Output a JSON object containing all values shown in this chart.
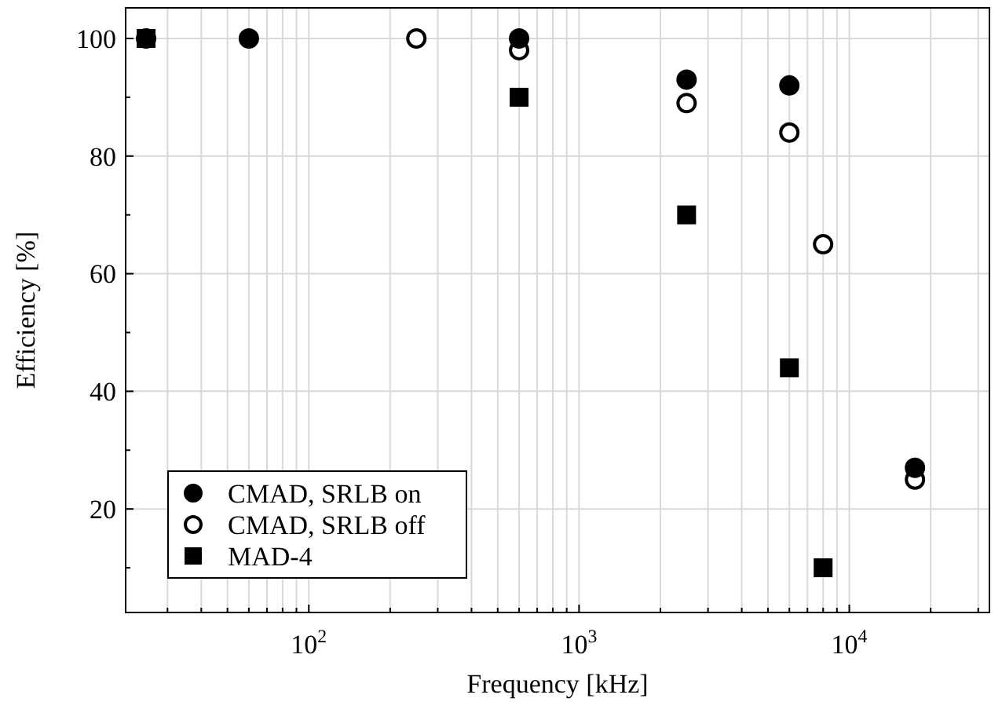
{
  "chart_data": {
    "type": "scatter",
    "xlabel": "Frequency [kHz]",
    "ylabel": "Efficiency [%]",
    "log": "x",
    "grid": true,
    "legend": "bottom left",
    "xlim": [
      21,
      33000
    ],
    "ylim": [
      2.4,
      105.2
    ],
    "xticks": [
      {
        "value": 30,
        "label": null
      },
      {
        "value": 40,
        "label": null
      },
      {
        "value": 50,
        "label": null
      },
      {
        "value": 60,
        "label": null
      },
      {
        "value": 70,
        "label": null
      },
      {
        "value": 80,
        "label": null
      },
      {
        "value": 90,
        "label": null
      },
      {
        "value": 100,
        "label": "10$^{2}$"
      },
      {
        "value": 200,
        "label": null
      },
      {
        "value": 300,
        "label": null
      },
      {
        "value": 400,
        "label": null
      },
      {
        "value": 500,
        "label": null
      },
      {
        "value": 600,
        "label": null
      },
      {
        "value": 700,
        "label": null
      },
      {
        "value": 800,
        "label": null
      },
      {
        "value": 900,
        "label": null
      },
      {
        "value": 1000,
        "label": "10$^{3}$"
      },
      {
        "value": 2000,
        "label": null
      },
      {
        "value": 3000,
        "label": null
      },
      {
        "value": 4000,
        "label": null
      },
      {
        "value": 5000,
        "label": null
      },
      {
        "value": 6000,
        "label": null
      },
      {
        "value": 7000,
        "label": null
      },
      {
        "value": 8000,
        "label": null
      },
      {
        "value": 9000,
        "label": null
      },
      {
        "value": 10000,
        "label": "10$^{4}$"
      },
      {
        "value": 20000,
        "label": null
      },
      {
        "value": 30000,
        "label": null
      }
    ],
    "yticks": [
      {
        "value": 10,
        "label": null
      },
      20,
      {
        "value": 30,
        "label": null
      },
      40,
      {
        "value": 50,
        "label": null
      },
      60,
      {
        "value": 70,
        "label": null
      },
      80,
      {
        "value": 90,
        "label": null
      },
      100
    ],
    "series": [
      {
        "name": "CMAD, SRLB on",
        "color": "#000000",
        "marker": "circle",
        "x": [
          25,
          60,
          600,
          2500,
          6000,
          17500
        ],
        "values": [
          100,
          100,
          100,
          93,
          92,
          27
        ]
      },
      {
        "name": "CMAD, SRLB off",
        "color": "#ffffff",
        "marker": "circle",
        "x": [
          250,
          600,
          2500,
          6000,
          8000,
          17500
        ],
        "values": [
          100,
          98,
          89,
          84,
          65,
          25
        ]
      },
      {
        "name": "MAD-4",
        "color": "#000000",
        "marker": "square",
        "x": [
          25,
          600,
          2500,
          6000,
          8000
        ],
        "values": [
          100,
          90,
          70,
          44,
          10
        ]
      }
    ]
  }
}
